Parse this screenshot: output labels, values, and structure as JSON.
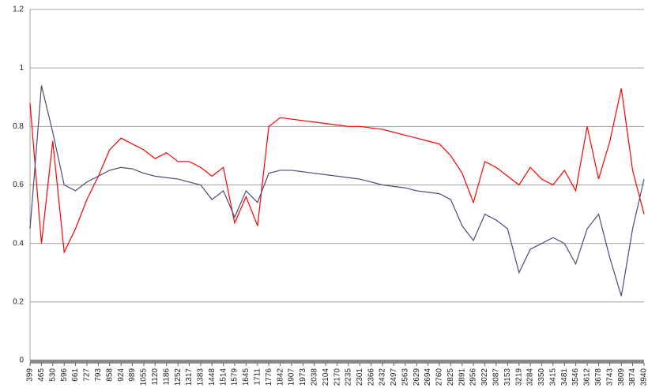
{
  "chart_data": {
    "type": "line",
    "x": [
      399,
      465,
      530,
      596,
      661,
      727,
      793,
      858,
      924,
      989,
      1055,
      1120,
      1186,
      1252,
      1317,
      1383,
      1448,
      1514,
      1579,
      1645,
      1711,
      1776,
      1842,
      1907,
      1973,
      2038,
      2104,
      2170,
      2235,
      2301,
      2366,
      2432,
      2497,
      2563,
      2629,
      2694,
      2760,
      2825,
      2891,
      2956,
      3022,
      3087,
      3153,
      3219,
      3284,
      3350,
      3415,
      3481,
      3546,
      3612,
      3678,
      3743,
      3809,
      3874,
      3940
    ],
    "series": [
      {
        "color": "#ff0000",
        "values": [
          0.88,
          0.4,
          0.75,
          0.37,
          0.45,
          0.55,
          0.63,
          0.72,
          0.76,
          0.74,
          0.72,
          0.69,
          0.71,
          0.68,
          0.68,
          0.66,
          0.63,
          0.66,
          0.47,
          0.56,
          0.46,
          0.8,
          0.83,
          0.825,
          0.82,
          0.815,
          0.81,
          0.805,
          0.8,
          0.8,
          0.795,
          0.79,
          0.78,
          0.77,
          0.76,
          0.75,
          0.74,
          0.7,
          0.64,
          0.54,
          0.68,
          0.66,
          0.63,
          0.6,
          0.66,
          0.62,
          0.6,
          0.65,
          0.58,
          0.8,
          0.62,
          0.75,
          0.93,
          0.65,
          0.5
        ]
      },
      {
        "color": "#4b4b7c",
        "values": [
          0.45,
          0.94,
          0.78,
          0.6,
          0.58,
          0.61,
          0.63,
          0.65,
          0.66,
          0.655,
          0.64,
          0.63,
          0.625,
          0.62,
          0.61,
          0.6,
          0.55,
          0.58,
          0.49,
          0.58,
          0.54,
          0.64,
          0.65,
          0.65,
          0.645,
          0.64,
          0.635,
          0.63,
          0.625,
          0.62,
          0.61,
          0.6,
          0.595,
          0.59,
          0.58,
          0.575,
          0.57,
          0.55,
          0.46,
          0.41,
          0.5,
          0.48,
          0.45,
          0.3,
          0.38,
          0.4,
          0.42,
          0.4,
          0.33,
          0.45,
          0.5,
          0.35,
          0.22,
          0.45,
          0.62
        ]
      }
    ],
    "xlim": [
      399,
      3940
    ],
    "xticks": [
      399,
      465,
      530,
      596,
      661,
      727,
      793,
      858,
      924,
      989,
      1055,
      1120,
      1186,
      1252,
      1317,
      1383,
      1448,
      1514,
      1579,
      1645,
      1711,
      1776,
      1842,
      1907,
      1973,
      2038,
      2104,
      2170,
      2235,
      2301,
      2366,
      2432,
      2497,
      2563,
      2629,
      2694,
      2760,
      2825,
      2891,
      2956,
      3022,
      3087,
      3153,
      3219,
      3284,
      3350,
      3415,
      3481,
      3546,
      3612,
      3678,
      3743,
      3809,
      3874,
      3940
    ],
    "ylim": [
      0,
      1.2
    ],
    "yticks": [
      0,
      0.2,
      0.4,
      0.6,
      0.8,
      1,
      1.2
    ],
    "grid": true
  }
}
